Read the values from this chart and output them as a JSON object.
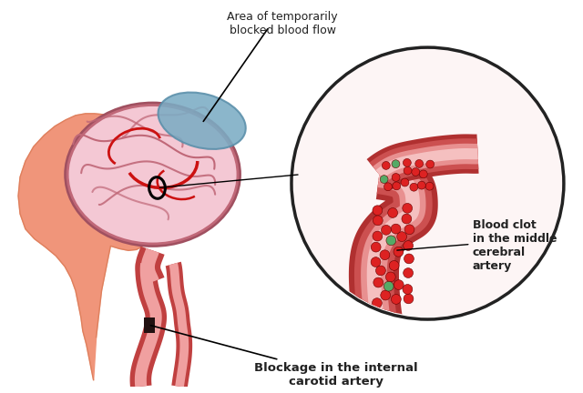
{
  "bg_color": "#ffffff",
  "head_color": "#F0957A",
  "head_outline": "#D4724A",
  "brain_outer_color": "#E8A0B0",
  "brain_inner_color": "#F4C8D4",
  "brain_outline": "#C06878",
  "blocked_area_color": "#7BACC4",
  "blocked_area_edge": "#5A8FAA",
  "artery_red": "#CC1111",
  "artery_dark": "#881111",
  "artery_mid": "#DD4444",
  "artery_light": "#EE9999",
  "vessel_outer": "#C04040",
  "vessel_wall": "#DD6060",
  "vessel_lumen": "#F0A0A0",
  "vessel_highlight": "#F8C8C8",
  "circle_bg": "#FDF5F5",
  "circle_edge": "#222222",
  "text_color": "#222222",
  "red_cell": "#DD2222",
  "green_cell": "#55AA66",
  "label_blocked": "Area of temporarily\nblocked blood flow",
  "label_clot": "Blood clot\nin the middle\ncerebral\nartery",
  "label_blockage": "Blockage in the internal\ncarotid artery",
  "figsize": [
    6.4,
    4.32
  ],
  "dpi": 100
}
